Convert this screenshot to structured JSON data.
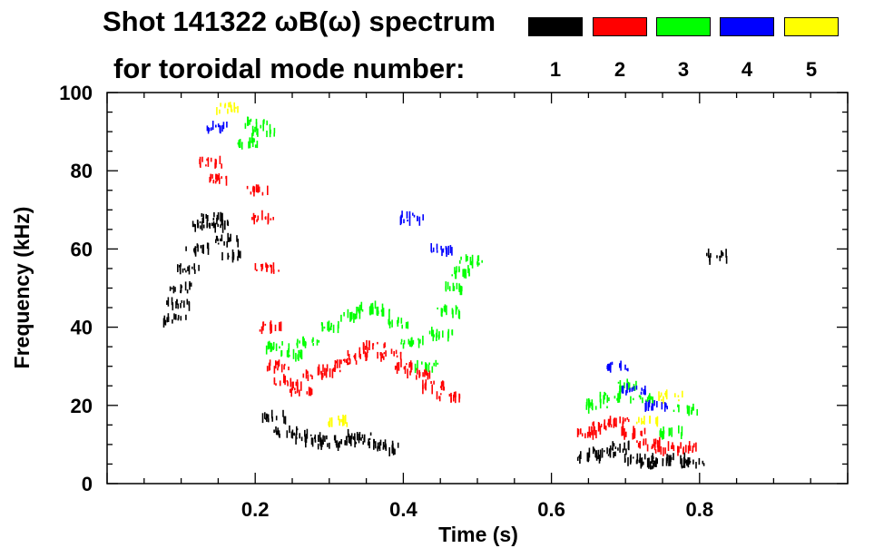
{
  "header": {
    "title_line1": "Shot 141322 ωB(ω) spectrum",
    "title_line2": "for toroidal mode number:"
  },
  "legend": [
    {
      "label": "1",
      "color": "#000000"
    },
    {
      "label": "2",
      "color": "#ff0000"
    },
    {
      "label": "3",
      "color": "#00ff00"
    },
    {
      "label": "4",
      "color": "#0000ff"
    },
    {
      "label": "5",
      "color": "#ffff00"
    }
  ],
  "chart_data": {
    "type": "heatmap",
    "xlabel": "Time (s)",
    "ylabel": "Frequency (kHz)",
    "xlim": [
      0.0,
      1.0
    ],
    "ylim": [
      0,
      100
    ],
    "x_tick_labels": [
      "0.2",
      "0.4",
      "0.6",
      "0.8"
    ],
    "y_tick_labels": [
      "0",
      "20",
      "40",
      "60",
      "80",
      "100"
    ],
    "grid": false,
    "series": [
      {
        "name": "1",
        "color": "#000000",
        "points": [
          [
            0.09,
            42
          ],
          [
            0.095,
            46
          ],
          [
            0.1,
            50
          ],
          [
            0.11,
            55
          ],
          [
            0.12,
            60
          ],
          [
            0.13,
            66
          ],
          [
            0.14,
            68
          ],
          [
            0.15,
            66
          ],
          [
            0.16,
            62
          ],
          [
            0.17,
            58
          ],
          [
            0.225,
            17
          ],
          [
            0.24,
            13
          ],
          [
            0.26,
            12
          ],
          [
            0.28,
            11
          ],
          [
            0.3,
            10
          ],
          [
            0.32,
            11
          ],
          [
            0.34,
            12
          ],
          [
            0.36,
            10
          ],
          [
            0.38,
            9
          ],
          [
            0.65,
            7
          ],
          [
            0.67,
            8
          ],
          [
            0.69,
            9
          ],
          [
            0.71,
            6
          ],
          [
            0.73,
            5
          ],
          [
            0.75,
            6
          ],
          [
            0.77,
            6
          ],
          [
            0.79,
            5
          ],
          [
            0.82,
            58
          ]
        ]
      },
      {
        "name": "2",
        "color": "#ff0000",
        "points": [
          [
            0.14,
            82
          ],
          [
            0.15,
            78
          ],
          [
            0.2,
            75
          ],
          [
            0.21,
            68
          ],
          [
            0.215,
            55
          ],
          [
            0.22,
            40
          ],
          [
            0.23,
            30
          ],
          [
            0.24,
            26
          ],
          [
            0.26,
            24
          ],
          [
            0.28,
            28
          ],
          [
            0.3,
            29
          ],
          [
            0.32,
            31
          ],
          [
            0.34,
            33
          ],
          [
            0.36,
            35
          ],
          [
            0.38,
            33
          ],
          [
            0.4,
            30
          ],
          [
            0.42,
            28
          ],
          [
            0.44,
            25
          ],
          [
            0.46,
            22
          ],
          [
            0.65,
            13
          ],
          [
            0.67,
            15
          ],
          [
            0.69,
            16
          ],
          [
            0.71,
            13
          ],
          [
            0.73,
            10
          ],
          [
            0.75,
            9
          ],
          [
            0.78,
            9
          ]
        ]
      },
      {
        "name": "3",
        "color": "#00ff00",
        "points": [
          [
            0.19,
            87
          ],
          [
            0.2,
            92
          ],
          [
            0.21,
            90
          ],
          [
            0.23,
            35
          ],
          [
            0.25,
            33
          ],
          [
            0.27,
            36
          ],
          [
            0.3,
            40
          ],
          [
            0.33,
            43
          ],
          [
            0.35,
            45
          ],
          [
            0.37,
            44
          ],
          [
            0.39,
            41
          ],
          [
            0.41,
            36
          ],
          [
            0.43,
            30
          ],
          [
            0.45,
            38
          ],
          [
            0.46,
            44
          ],
          [
            0.47,
            50
          ],
          [
            0.48,
            54
          ],
          [
            0.49,
            57
          ],
          [
            0.66,
            20
          ],
          [
            0.68,
            22
          ],
          [
            0.7,
            25
          ],
          [
            0.72,
            22
          ],
          [
            0.76,
            13
          ],
          [
            0.78,
            19
          ]
        ]
      },
      {
        "name": "4",
        "color": "#0000ff",
        "points": [
          [
            0.15,
            91
          ],
          [
            0.41,
            68
          ],
          [
            0.45,
            60
          ],
          [
            0.69,
            30
          ],
          [
            0.71,
            24
          ],
          [
            0.74,
            20
          ]
        ]
      },
      {
        "name": "5",
        "color": "#ffff00",
        "points": [
          [
            0.16,
            96
          ],
          [
            0.31,
            16
          ],
          [
            0.73,
            16
          ],
          [
            0.76,
            22
          ]
        ]
      }
    ]
  }
}
